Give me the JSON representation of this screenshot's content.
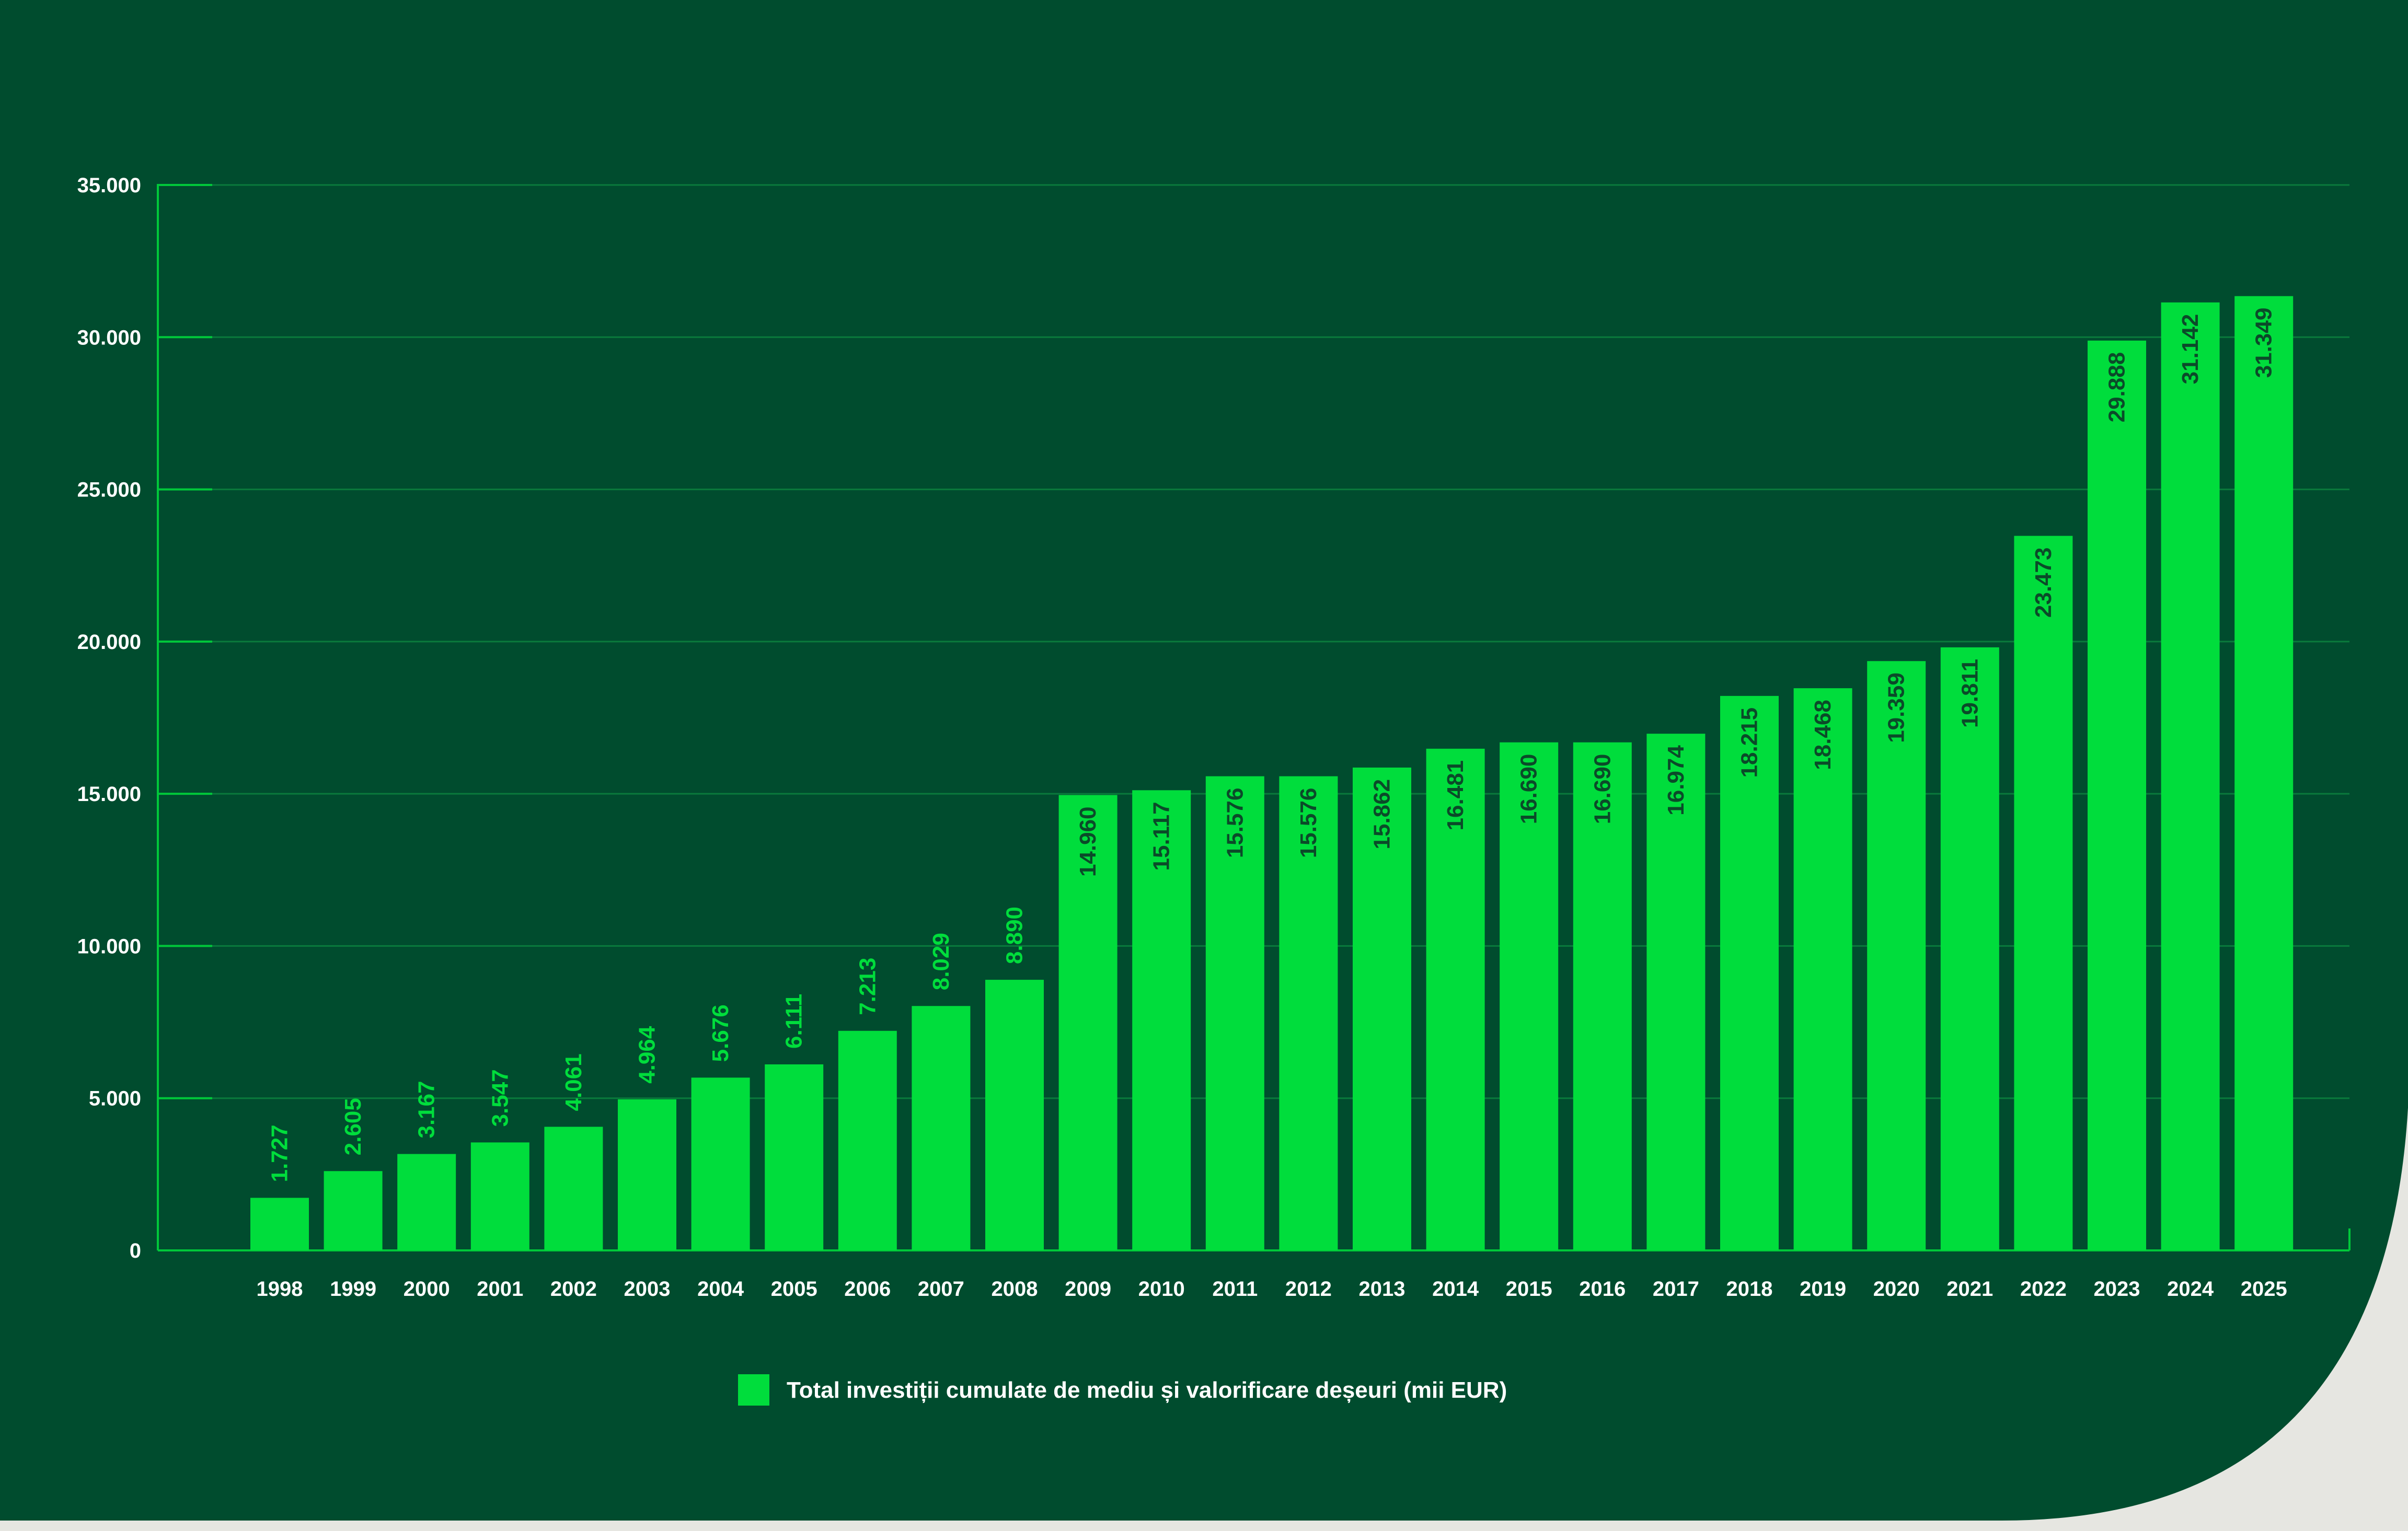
{
  "colors": {
    "background": "#004c2e",
    "page": "#e6e6e1",
    "bar": "#00dd3c",
    "axis": "#00c83a",
    "grid": "#0a7a3c",
    "tick_text": "#ffffff",
    "label_inside": "#0b4a29",
    "label_outside": "#00dd3c"
  },
  "chart_data": {
    "type": "bar",
    "title": "",
    "xlabel": "",
    "ylabel": "",
    "ylim": [
      0,
      35000
    ],
    "grid": true,
    "legend_position": "bottom-center",
    "categories": [
      "1998",
      "1999",
      "2000",
      "2001",
      "2002",
      "2003",
      "2004",
      "2005",
      "2006",
      "2007",
      "2008",
      "2009",
      "2010",
      "2011",
      "2012",
      "2013",
      "2014",
      "2015",
      "2016",
      "2017",
      "2018",
      "2019",
      "2020",
      "2021",
      "2022",
      "2023",
      "2024",
      "2025"
    ],
    "values": [
      1727,
      2605,
      3167,
      3547,
      4061,
      4964,
      5676,
      6111,
      7213,
      8029,
      8890,
      14960,
      15117,
      15576,
      15576,
      15862,
      16481,
      16690,
      16690,
      16974,
      18215,
      18468,
      19359,
      19811,
      23473,
      29888,
      31142,
      31349
    ],
    "value_labels": [
      "1.727",
      "2.605",
      "3.167",
      "3.547",
      "4.061",
      "4.964",
      "5.676",
      "6.111",
      "7.213",
      "8.029",
      "8.890",
      "14.960",
      "15.117",
      "15.576",
      "15.576",
      "15.862",
      "16.481",
      "16.690",
      "16.690",
      "16.974",
      "18.215",
      "18.468",
      "19.359",
      "19.811",
      "23.473",
      "29.888",
      "31.142",
      "31.349"
    ],
    "y_ticks": [
      0,
      5000,
      10000,
      15000,
      20000,
      25000,
      30000,
      35000
    ],
    "y_tick_labels": [
      "0",
      "5.000",
      "10.000",
      "15.000",
      "20.000",
      "25.000",
      "30.000",
      "35.000"
    ],
    "series": [
      {
        "name": "Total investiții cumulate de mediu și valorificare deșeuri (mii EUR)"
      }
    ]
  }
}
